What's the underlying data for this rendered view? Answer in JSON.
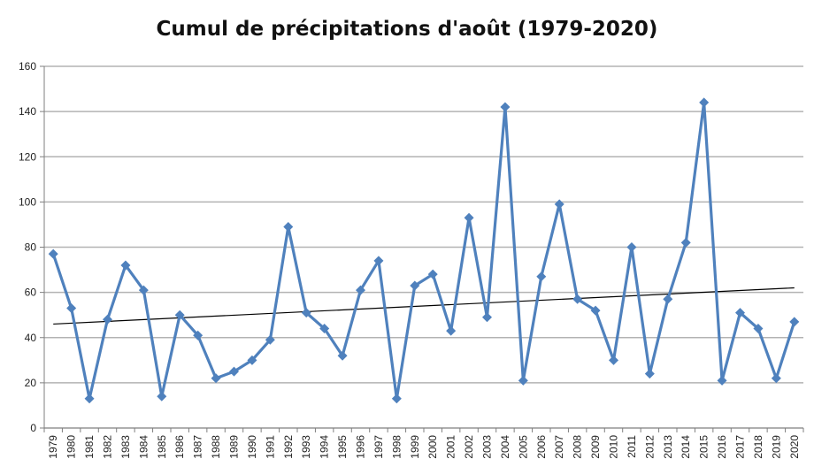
{
  "chart_data": {
    "type": "line",
    "title": "Cumul de précipitations d'août (1979-2020)",
    "xlabel": "",
    "ylabel": "",
    "ylim": [
      0,
      160
    ],
    "yticks": [
      0,
      20,
      40,
      60,
      80,
      100,
      120,
      140,
      160
    ],
    "grid": true,
    "legend": "none",
    "categories": [
      "1979",
      "1980",
      "1981",
      "1982",
      "1983",
      "1984",
      "1985",
      "1986",
      "1987",
      "1988",
      "1989",
      "1990",
      "1991",
      "1992",
      "1993",
      "1994",
      "1995",
      "1996",
      "1997",
      "1998",
      "1999",
      "2000",
      "2001",
      "2002",
      "2003",
      "2004",
      "2005",
      "2006",
      "2007",
      "2008",
      "2009",
      "2010",
      "2011",
      "2012",
      "2013",
      "2014",
      "2015",
      "2016",
      "2017",
      "2018",
      "2019",
      "2020"
    ],
    "series": [
      {
        "name": "",
        "color": "#4f81bd",
        "values": [
          77,
          53,
          13,
          48,
          72,
          61,
          14,
          50,
          41,
          22,
          25,
          30,
          39,
          89,
          51,
          44,
          32,
          61,
          74,
          13,
          63,
          68,
          43,
          93,
          49,
          142,
          21,
          67,
          99,
          57,
          52,
          30,
          80,
          24,
          57,
          82,
          144,
          21,
          51,
          44,
          22,
          47
        ]
      }
    ],
    "trendline": {
      "type": "linear",
      "color": "#000000",
      "start": 46,
      "end": 62
    },
    "colors": {
      "grid": "#b3b3b3",
      "axis": "#7f7f7f",
      "series": "#4f81bd",
      "trend": "#000000"
    }
  }
}
